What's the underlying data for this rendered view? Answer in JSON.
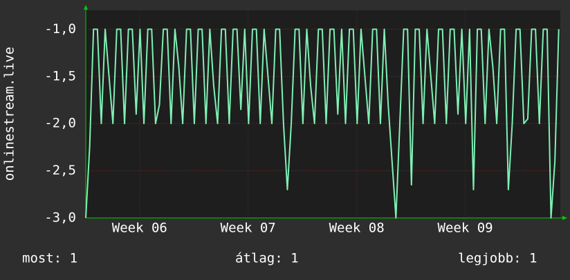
{
  "chart_data": {
    "type": "line",
    "y_label": "onlinestream.live",
    "x": [
      0,
      0.25,
      0.5,
      0.75,
      1,
      1.25,
      1.5,
      1.75,
      2,
      2.25,
      2.5,
      2.75,
      3,
      3.25,
      3.5,
      3.75,
      4,
      4.25,
      4.5,
      4.75,
      5,
      5.25,
      5.5,
      5.75,
      6,
      6.25,
      6.5,
      6.75,
      7,
      7.25,
      7.5,
      7.75,
      8,
      8.25,
      8.5,
      8.75,
      9,
      9.25,
      9.5,
      9.75,
      10,
      10.25,
      10.5,
      10.75,
      11,
      11.25,
      11.5,
      11.75,
      12,
      12.25,
      12.5,
      12.75,
      13,
      13.25,
      13.5,
      13.75,
      14,
      14.25,
      14.5,
      14.75,
      15,
      15.25,
      15.5,
      15.75,
      16,
      16.25,
      16.5,
      16.75,
      17,
      17.25,
      17.5,
      17.75,
      18,
      18.25,
      18.5,
      18.75,
      19,
      19.25,
      19.5,
      19.75,
      20,
      20.25,
      20.5,
      20.75,
      21,
      21.25,
      21.5,
      21.75,
      22,
      22.25,
      22.5,
      22.75,
      23,
      23.25,
      23.5,
      23.75,
      24,
      24.25,
      24.5,
      24.75,
      25,
      25.25,
      25.5,
      25.75,
      26,
      26.25,
      26.5,
      26.75,
      27,
      27.25,
      27.5,
      27.75,
      28,
      28.25,
      28.5,
      28.75,
      29,
      29.25,
      29.5,
      29.75,
      30,
      30.25,
      30.5
    ],
    "series": [
      {
        "color": "#7ff0b4",
        "values": [
          -3,
          -2.25,
          -1,
          -1,
          -2,
          -1,
          -1.5,
          -2,
          -1,
          -1,
          -2,
          -1,
          -1,
          -1.9,
          -1,
          -2,
          -1,
          -1,
          -2,
          -1.8,
          -1,
          -1,
          -2,
          -1,
          -1.4,
          -2,
          -1,
          -1,
          -2,
          -1,
          -1,
          -2,
          -1,
          -1.6,
          -2,
          -1,
          -1,
          -2,
          -1,
          -1,
          -1.85,
          -1,
          -2,
          -1,
          -1,
          -2,
          -1,
          -1.5,
          -2,
          -1,
          -1,
          -2,
          -2.7,
          -2,
          -1,
          -1,
          -2,
          -1,
          -1.6,
          -2,
          -1,
          -1,
          -2,
          -1,
          -1,
          -1.9,
          -1,
          -2,
          -1,
          -1,
          -2,
          -1,
          -1.5,
          -2,
          -1,
          -1,
          -2,
          -1,
          -1.8,
          -2.4,
          -3,
          -2,
          -1,
          -1,
          -2.65,
          -1,
          -1,
          -2,
          -1,
          -1.5,
          -2,
          -1,
          -1,
          -2,
          -1,
          -1,
          -1.9,
          -1,
          -2,
          -1,
          -2.7,
          -1,
          -1,
          -2,
          -1,
          -1.4,
          -2,
          -1,
          -1,
          -2.7,
          -2,
          -1,
          -1,
          -2,
          -1.95,
          -1,
          -1,
          -2,
          -1,
          -1,
          -3,
          -2.4,
          -1
        ]
      }
    ],
    "xlim": [
      0,
      30.6
    ],
    "xticks": [
      {
        "value": 3.47,
        "label": "Week 06"
      },
      {
        "value": 10.47,
        "label": "Week 07"
      },
      {
        "value": 17.47,
        "label": "Week 08"
      },
      {
        "value": 24.47,
        "label": "Week 09"
      }
    ],
    "ylim": [
      -3.0,
      -0.8
    ],
    "yticks": [
      {
        "value": -3,
        "label": "-3,0"
      },
      {
        "value": -2.5,
        "label": "-2,5"
      },
      {
        "value": -2,
        "label": "-2,0"
      },
      {
        "value": -1.5,
        "label": "-1,5"
      },
      {
        "value": -1,
        "label": "-1,0"
      }
    ],
    "grid": true,
    "stats": [
      "most: 1",
      "átlag: 1",
      "legjobb: 1"
    ]
  }
}
